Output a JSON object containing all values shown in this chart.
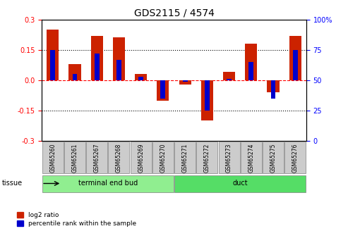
{
  "title": "GDS2115 / 4574",
  "samples": [
    "GSM65260",
    "GSM65261",
    "GSM65267",
    "GSM65268",
    "GSM65269",
    "GSM65270",
    "GSM65271",
    "GSM65272",
    "GSM65273",
    "GSM65274",
    "GSM65275",
    "GSM65276"
  ],
  "log2_ratio": [
    0.25,
    0.08,
    0.22,
    0.21,
    0.03,
    -0.1,
    -0.02,
    -0.2,
    0.04,
    0.18,
    -0.06,
    0.22
  ],
  "percentile": [
    75,
    55,
    72,
    67,
    53,
    35,
    49,
    25,
    51,
    65,
    35,
    75
  ],
  "groups": [
    {
      "label": "terminal end bud",
      "start": 0,
      "end": 5,
      "color": "#90EE90"
    },
    {
      "label": "duct",
      "start": 6,
      "end": 11,
      "color": "#55DD66"
    }
  ],
  "tissue_label": "tissue",
  "ylim_left": [
    -0.3,
    0.3
  ],
  "ylim_right": [
    0,
    100
  ],
  "yticks_left": [
    -0.3,
    -0.15,
    0.0,
    0.15,
    0.3
  ],
  "yticks_right": [
    0,
    25,
    50,
    75,
    100
  ],
  "bar_width": 0.55,
  "blue_bar_width": 0.22,
  "red_color": "#CC2200",
  "blue_color": "#0000CC",
  "bg_color": "#FFFFFF",
  "plot_bg": "#FFFFFF",
  "sample_bg": "#CCCCCC",
  "legend_red": "log2 ratio",
  "legend_blue": "percentile rank within the sample"
}
